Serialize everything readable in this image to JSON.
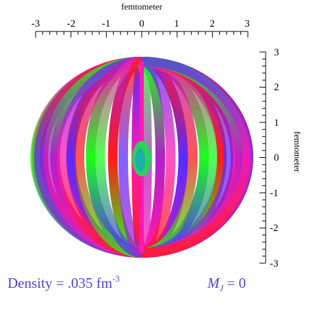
{
  "top_axis": {
    "title": "femtometer",
    "ticks": [
      "-3",
      "-2",
      "-1",
      "0",
      "1",
      "2",
      "3"
    ]
  },
  "right_axis": {
    "title": "femtometer",
    "ticks": [
      "3",
      "2",
      "1",
      "0",
      "-1",
      "-2",
      "-3"
    ]
  },
  "caption": {
    "density_text": "Density = .035 fm",
    "density_exponent": "-3",
    "mj_symbol": "M",
    "mj_subscript": "J",
    "mj_value": " = 0"
  },
  "colors": {
    "text_accent": "#5b3bd9",
    "band_palette": [
      "#ff1a1a",
      "#1aff1a",
      "#5a2bff",
      "#b020c8",
      "#ff1ab0"
    ]
  }
}
